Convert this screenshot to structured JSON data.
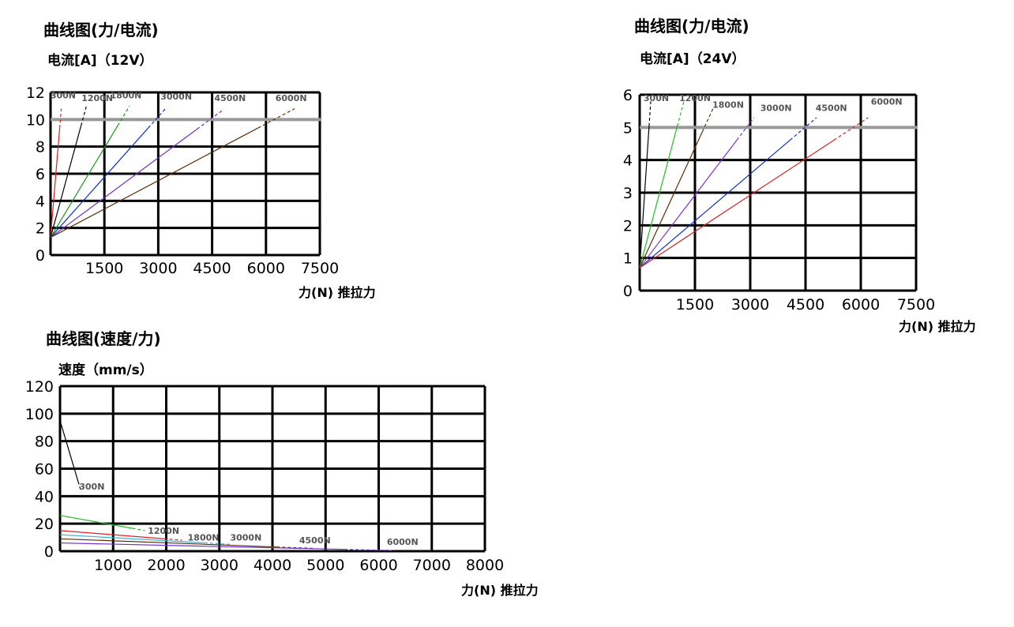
{
  "chart_data": [
    {
      "type": "line",
      "title": "曲线图(力/电流)",
      "ylabel": "电流[A]（12V）",
      "xlabel": "力(N) 推拉力",
      "xlim": [
        0,
        7500
      ],
      "ylim": [
        0,
        12
      ],
      "xticks": [
        "1500",
        "3000",
        "4500",
        "6000",
        "7500"
      ],
      "yticks": [
        "0",
        "2",
        "4",
        "6",
        "8",
        "10",
        "12"
      ],
      "reference_line": {
        "y": 10,
        "color": "#999999"
      },
      "grid": true,
      "series": [
        {
          "name": "300N",
          "color": "#e02020",
          "x": [
            0,
            300
          ],
          "y": [
            1.3,
            10.8
          ],
          "label_x": 350,
          "label_y": 11.8
        },
        {
          "name": "1200N",
          "color": "#000000",
          "x": [
            0,
            1000
          ],
          "y": [
            1.3,
            11.0
          ],
          "label_x": 1300,
          "label_y": 11.6
        },
        {
          "name": "1800N",
          "color": "#1a9a1a",
          "x": [
            0,
            2200
          ],
          "y": [
            1.3,
            11.0
          ],
          "label_x": 2100,
          "label_y": 11.8
        },
        {
          "name": "3000N",
          "color": "#1030d0",
          "x": [
            0,
            3200
          ],
          "y": [
            1.3,
            10.8
          ],
          "label_x": 3500,
          "label_y": 11.7
        },
        {
          "name": "4500N",
          "color": "#7030d0",
          "x": [
            0,
            4800
          ],
          "y": [
            1.3,
            10.7
          ],
          "label_x": 5000,
          "label_y": 11.6
        },
        {
          "name": "6000N",
          "color": "#5a2e0a",
          "x": [
            0,
            6800
          ],
          "y": [
            1.3,
            10.8
          ],
          "label_x": 6700,
          "label_y": 11.6
        }
      ]
    },
    {
      "type": "line",
      "title": "曲线图(力/电流)",
      "ylabel": "电流[A]（24V）",
      "xlabel": "力(N) 推拉力",
      "xlim": [
        0,
        7500
      ],
      "ylim": [
        0,
        6
      ],
      "xticks": [
        "1500",
        "3000",
        "4500",
        "6000",
        "7500"
      ],
      "yticks": [
        "0",
        "1",
        "2",
        "3",
        "4",
        "5",
        "6"
      ],
      "reference_line": {
        "y": 5,
        "color": "#999999"
      },
      "grid": true,
      "series": [
        {
          "name": "300N",
          "color": "#000000",
          "x": [
            0,
            300
          ],
          "y": [
            0.7,
            5.8
          ],
          "label_x": 450,
          "label_y": 5.9
        },
        {
          "name": "1200N",
          "color": "#20c020",
          "x": [
            0,
            1200
          ],
          "y": [
            0.7,
            5.8
          ],
          "label_x": 1500,
          "label_y": 5.9
        },
        {
          "name": "1800N",
          "color": "#5a2e0a",
          "x": [
            0,
            2000
          ],
          "y": [
            0.7,
            5.6
          ],
          "label_x": 2400,
          "label_y": 5.7
        },
        {
          "name": "3000N",
          "color": "#8030d0",
          "x": [
            0,
            3100
          ],
          "y": [
            0.7,
            5.3
          ],
          "label_x": 3700,
          "label_y": 5.6
        },
        {
          "name": "4500N",
          "color": "#1030d0",
          "x": [
            0,
            4800
          ],
          "y": [
            0.7,
            5.3
          ],
          "label_x": 5200,
          "label_y": 5.6
        },
        {
          "name": "6000N",
          "color": "#e02020",
          "x": [
            0,
            6200
          ],
          "y": [
            0.7,
            5.3
          ],
          "label_x": 6700,
          "label_y": 5.8
        }
      ]
    },
    {
      "type": "line",
      "title": "曲线图(速度/力)",
      "ylabel": "速度（mm/s）",
      "xlabel": "力(N) 推拉力",
      "xlim": [
        0,
        8000
      ],
      "ylim": [
        0,
        120
      ],
      "xticks": [
        "1000",
        "2000",
        "3000",
        "4000",
        "5000",
        "6000",
        "7000",
        "8000"
      ],
      "yticks": [
        "0",
        "20",
        "40",
        "60",
        "80",
        "100",
        "120"
      ],
      "grid": true,
      "series": [
        {
          "name": "300N",
          "color": "#000000",
          "x": [
            0,
            400
          ],
          "y": [
            95,
            43
          ],
          "label_x": 600,
          "label_y": 47
        },
        {
          "name": "1200N",
          "color": "#20c020",
          "x": [
            0,
            1600
          ],
          "y": [
            26,
            15
          ],
          "label_x": 1950,
          "label_y": 15
        },
        {
          "name": "1800N",
          "color": "#e02020",
          "x": [
            0,
            2300
          ],
          "y": [
            15,
            8
          ],
          "label_x": 2700,
          "label_y": 10
        },
        {
          "name": "3000N",
          "color": "#40b0e0",
          "x": [
            0,
            3200
          ],
          "y": [
            12,
            5
          ],
          "label_x": 3500,
          "label_y": 10
        },
        {
          "name": "4500N",
          "color": "#5a2e0a",
          "x": [
            0,
            4800
          ],
          "y": [
            9,
            2
          ],
          "label_x": 4800,
          "label_y": 8
        },
        {
          "name": "6000N",
          "color": "#7030d0",
          "x": [
            0,
            6300
          ],
          "y": [
            6,
            0.5
          ],
          "label_x": 6450,
          "label_y": 7
        }
      ]
    }
  ]
}
